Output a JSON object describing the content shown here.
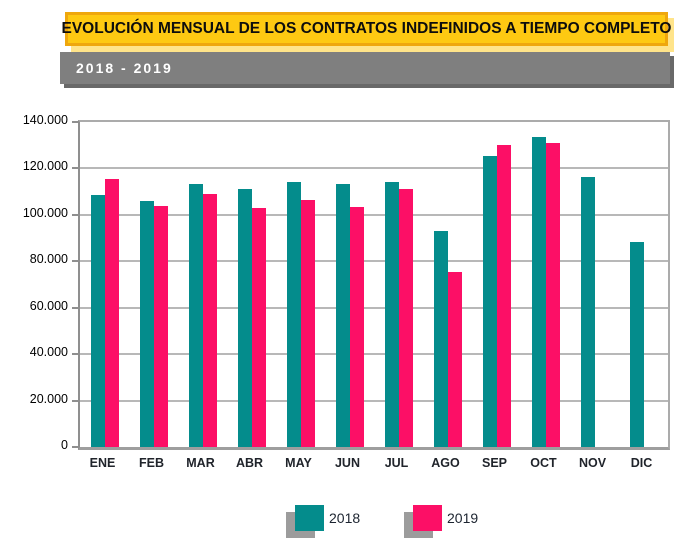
{
  "header": {
    "title": "EVOLUCIÓN MENSUAL DE LOS CONTRATOS INDEFINIDOS A TIEMPO COMPLETO",
    "subtitle": "2018 - 2019"
  },
  "colors": {
    "series_2018": "#048C8C",
    "series_2019": "#FC0F66",
    "title_bg": "#FEC912",
    "title_border": "#EFA70D",
    "title_shadow": "#FFE48A",
    "subtitle_bg": "#7F7F7F",
    "subtitle_shadow": "#696969",
    "gridline": "#B8B8B8",
    "legend_shadow": "#9C9C9C"
  },
  "chart_data": {
    "type": "bar",
    "title": "EVOLUCIÓN MENSUAL DE LOS CONTRATOS INDEFINIDOS A TIEMPO COMPLETO",
    "subtitle": "2018 - 2019",
    "categories": [
      "ENE",
      "FEB",
      "MAR",
      "ABR",
      "MAY",
      "JUN",
      "JUL",
      "AGO",
      "SEP",
      "OCT",
      "NOV",
      "DIC"
    ],
    "series": [
      {
        "name": "2018",
        "color": "#048C8C",
        "values": [
          108500,
          106000,
          113500,
          111000,
          114000,
          113500,
          114000,
          93000,
          125500,
          133500,
          116500,
          88500
        ]
      },
      {
        "name": "2019",
        "color": "#FC0F66",
        "values": [
          115500,
          104000,
          109000,
          103000,
          106500,
          103500,
          111000,
          75500,
          130000,
          131000,
          null,
          null
        ]
      }
    ],
    "xlabel": "",
    "ylabel": "",
    "ylim": [
      0,
      140000
    ],
    "ytick_step": 20000,
    "ytick_labels": [
      "0",
      "20.000",
      "40.000",
      "60.000",
      "80.000",
      "100.000",
      "120.000",
      "140.000"
    ],
    "grid": true,
    "legend_position": "bottom"
  }
}
